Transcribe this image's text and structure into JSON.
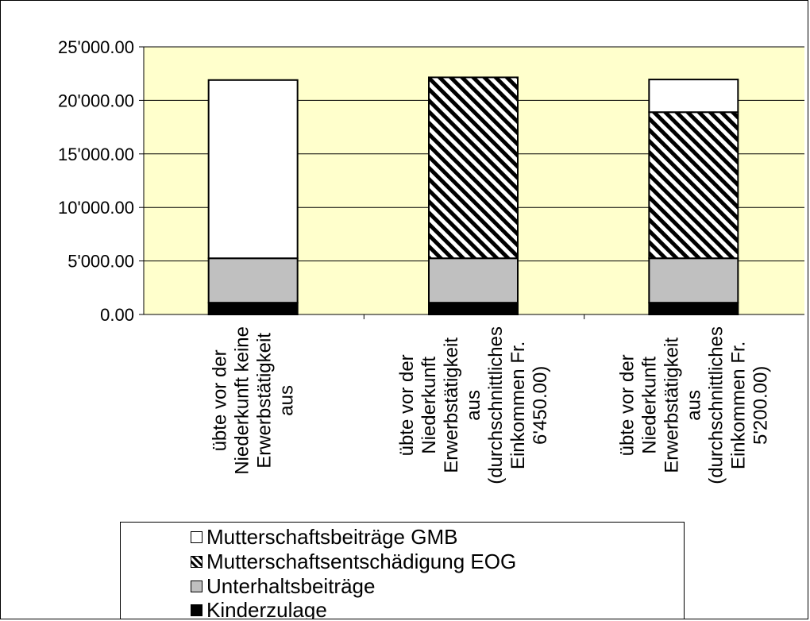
{
  "chart_data": {
    "type": "bar",
    "stacked": true,
    "title": "",
    "xlabel": "",
    "ylabel": "",
    "ylim": [
      0,
      25000
    ],
    "y_ticks": [
      0,
      5000,
      10000,
      15000,
      20000,
      25000
    ],
    "y_tick_labels": [
      "0.00",
      "5'000.00",
      "10'000.00",
      "15'000.00",
      "20'000.00",
      "25'000.00"
    ],
    "grid": true,
    "plot_background": "#ffffcc",
    "legend_position": "bottom",
    "categories": [
      [
        "übte vor der",
        "Niederkunft keine",
        "Erwerbstätigkeit",
        "aus"
      ],
      [
        "übte vor der",
        "Niederkunft",
        "Erwerbstätigkeit",
        "aus",
        "(durchschnittliches",
        "Einkommen Fr.",
        "6'450.00)"
      ],
      [
        "übte vor der",
        "Niederkunft",
        "Erwerbstätigkeit",
        "aus",
        "(durchschnittliches",
        "Einkommen Fr.",
        "5'200.00)"
      ]
    ],
    "series": [
      {
        "name": "Kinderzulage",
        "color": "#000000",
        "pattern": "solid",
        "values": [
          1100,
          1100,
          1100
        ]
      },
      {
        "name": "Unterhaltsbeiträge",
        "color": "#c0c0c0",
        "pattern": "solid",
        "values": [
          4150,
          4150,
          4150
        ]
      },
      {
        "name": "Mutterschaftsentschädigung EOG",
        "color": "#000000",
        "pattern": "diagonal-stripes",
        "values": [
          0,
          16900,
          13650
        ]
      },
      {
        "name": "Mutterschaftsbeiträge GMB",
        "color": "#ffffff",
        "pattern": "solid",
        "values": [
          16650,
          0,
          3050
        ]
      }
    ]
  },
  "legend": {
    "items": [
      {
        "label": "Mutterschaftsbeiträge GMB",
        "color": "#ffffff",
        "pattern": "solid"
      },
      {
        "label": "Mutterschaftsentschädigung EOG",
        "color": "#000000",
        "pattern": "diagonal-stripes"
      },
      {
        "label": "Unterhaltsbeiträge",
        "color": "#c0c0c0",
        "pattern": "solid"
      },
      {
        "label": "Kinderzulage",
        "color": "#000000",
        "pattern": "solid"
      }
    ]
  }
}
